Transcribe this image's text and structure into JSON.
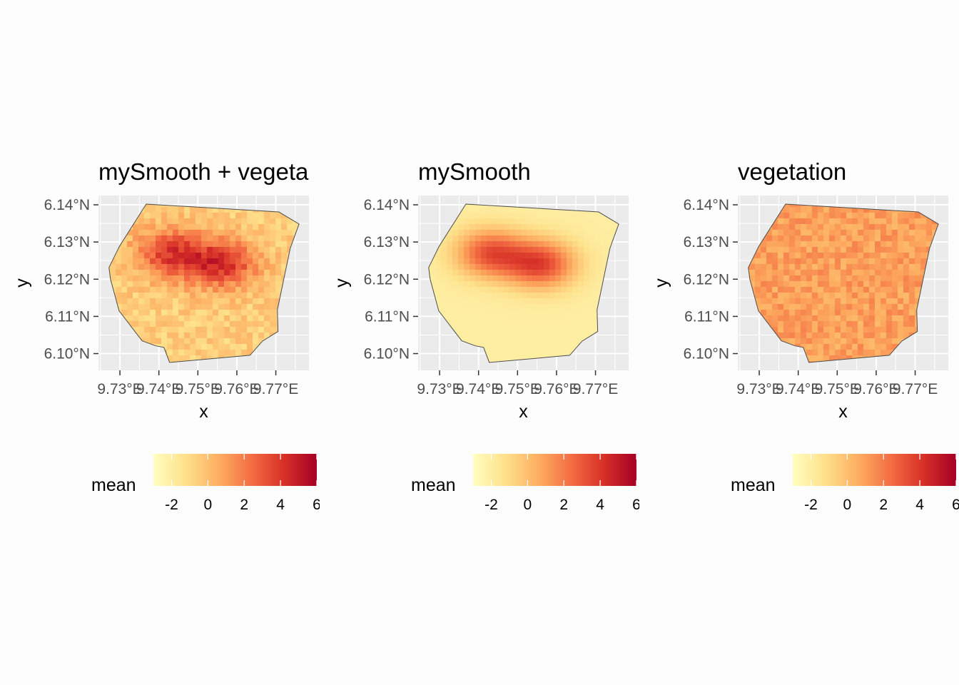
{
  "chart_data": [
    {
      "type": "heatmap",
      "title": "mySmooth + vegeta",
      "xlabel": "x",
      "ylabel": "y",
      "x_tick_labels": [
        "9.73°E",
        "9.74°E",
        "9.75°E",
        "9.76°E",
        "9.77°E"
      ],
      "y_tick_labels": [
        "6.14°N",
        "6.13°N",
        "6.12°N",
        "6.11°N",
        "6.10°N"
      ],
      "xlim": [
        9.7245,
        9.7785
      ],
      "ylim": [
        6.0955,
        6.1425
      ],
      "grid": true,
      "fill": {
        "legend_title": "mean",
        "range": [
          -3,
          6
        ],
        "breaks": [
          -2,
          0,
          2,
          4,
          6
        ],
        "break_labels": [
          "-2",
          "0",
          "2",
          "4",
          "6"
        ],
        "palette": [
          "#ffffbf",
          "#fee08b",
          "#fdae61",
          "#f46d43",
          "#d73027",
          "#a50026"
        ]
      },
      "hotspots": [
        {
          "x": 9.743,
          "y": 6.127,
          "value": 4.5
        },
        {
          "x": 9.756,
          "y": 6.124,
          "value": 5.0
        }
      ],
      "background_value": -0.5,
      "legend_position": "bottom"
    },
    {
      "type": "heatmap",
      "title": "mySmooth",
      "xlabel": "x",
      "ylabel": "y",
      "x_tick_labels": [
        "9.73°E",
        "9.74°E",
        "9.75°E",
        "9.76°E",
        "9.77°E"
      ],
      "y_tick_labels": [
        "6.14°N",
        "6.13°N",
        "6.12°N",
        "6.11°N",
        "6.10°N"
      ],
      "xlim": [
        9.7245,
        9.7785
      ],
      "ylim": [
        6.0955,
        6.1425
      ],
      "grid": true,
      "fill": {
        "legend_title": "mean",
        "range": [
          -3,
          6
        ],
        "breaks": [
          -2,
          0,
          2,
          4,
          6
        ],
        "break_labels": [
          "-2",
          "0",
          "2",
          "4",
          "6"
        ],
        "palette": [
          "#ffffbf",
          "#fee08b",
          "#fdae61",
          "#f46d43",
          "#d73027",
          "#a50026"
        ]
      },
      "hotspots": [
        {
          "x": 9.743,
          "y": 6.127,
          "value": 4.0
        },
        {
          "x": 9.756,
          "y": 6.124,
          "value": 4.5
        }
      ],
      "background_value": -2.0,
      "legend_position": "bottom"
    },
    {
      "type": "heatmap",
      "title": "vegetation",
      "xlabel": "x",
      "ylabel": "y",
      "x_tick_labels": [
        "9.73°E",
        "9.74°E",
        "9.75°E",
        "9.76°E",
        "9.77°E"
      ],
      "y_tick_labels": [
        "6.14°N",
        "6.13°N",
        "6.12°N",
        "6.11°N",
        "6.10°N"
      ],
      "xlim": [
        9.7245,
        9.7785
      ],
      "ylim": [
        6.0955,
        6.1425
      ],
      "grid": true,
      "fill": {
        "legend_title": "mean",
        "range": [
          -3,
          6
        ],
        "breaks": [
          -2,
          0,
          2,
          4,
          6
        ],
        "break_labels": [
          "-2",
          "0",
          "2",
          "4",
          "6"
        ],
        "palette": [
          "#ffffbf",
          "#fee08b",
          "#fdae61",
          "#f46d43",
          "#d73027",
          "#a50026"
        ]
      },
      "hotspots": [],
      "background_value": 1.0,
      "legend_position": "bottom"
    }
  ],
  "theme": {
    "panel_background": "#ebebeb",
    "grid_color": "#ffffff",
    "outline_color": "#4d4d4d",
    "page_background": "#fdfdfd"
  }
}
